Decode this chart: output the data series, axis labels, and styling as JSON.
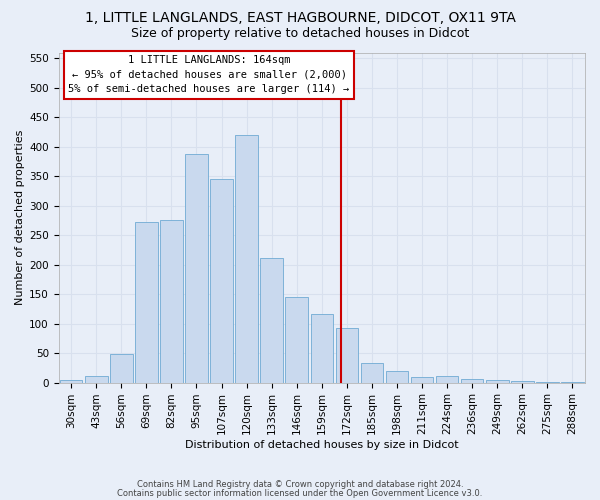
{
  "title": "1, LITTLE LANGLANDS, EAST HAGBOURNE, DIDCOT, OX11 9TA",
  "subtitle": "Size of property relative to detached houses in Didcot",
  "xlabel": "Distribution of detached houses by size in Didcot",
  "ylabel": "Number of detached properties",
  "bar_labels": [
    "30sqm",
    "43sqm",
    "56sqm",
    "69sqm",
    "82sqm",
    "95sqm",
    "107sqm",
    "120sqm",
    "133sqm",
    "146sqm",
    "159sqm",
    "172sqm",
    "185sqm",
    "198sqm",
    "211sqm",
    "224sqm",
    "236sqm",
    "249sqm",
    "262sqm",
    "275sqm",
    "288sqm"
  ],
  "bar_heights": [
    5,
    12,
    49,
    273,
    275,
    387,
    346,
    420,
    211,
    145,
    116,
    92,
    34,
    19,
    10,
    12,
    6,
    4,
    2,
    1,
    1
  ],
  "bar_color": "#c9d9ee",
  "bar_edge_color": "#6faad4",
  "vline_x_idx": 10.77,
  "vline_color": "#cc0000",
  "annotation_line1": "1 LITTLE LANGLANDS: 164sqm",
  "annotation_line2": "← 95% of detached houses are smaller (2,000)",
  "annotation_line3": "5% of semi-detached houses are larger (114) →",
  "annotation_box_edge_color": "#cc0000",
  "ylim": [
    0,
    560
  ],
  "yticks": [
    0,
    50,
    100,
    150,
    200,
    250,
    300,
    350,
    400,
    450,
    500,
    550
  ],
  "bg_color": "#e8eef8",
  "grid_color": "#d8e0ee",
  "title_fontsize": 10,
  "subtitle_fontsize": 9,
  "axis_label_fontsize": 8,
  "tick_fontsize": 7.5,
  "footer1": "Contains HM Land Registry data © Crown copyright and database right 2024.",
  "footer2": "Contains public sector information licensed under the Open Government Licence v3.0."
}
